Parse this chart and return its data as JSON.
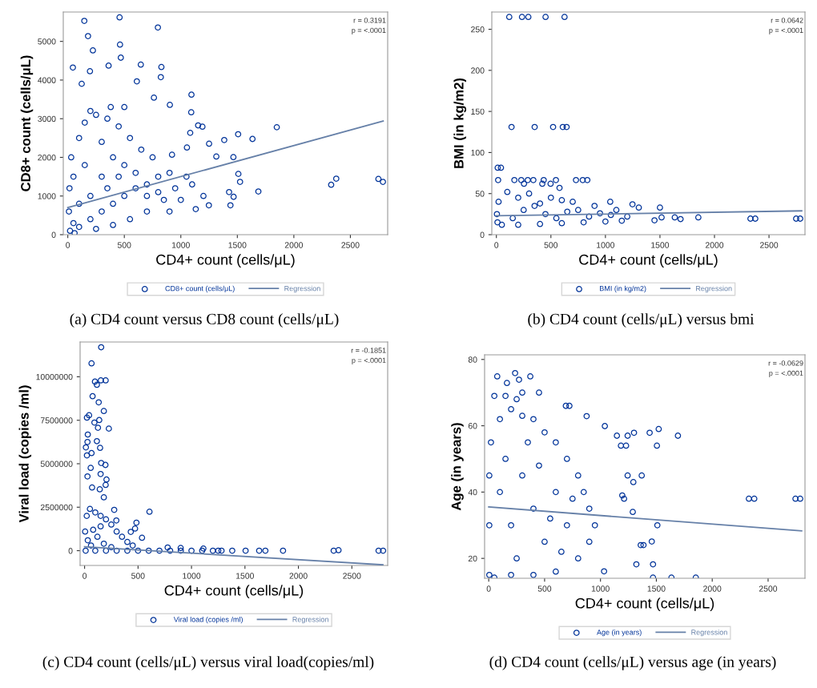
{
  "chart_data": [
    {
      "type": "scatter",
      "xlabel": "CD4+ count (cells/μL)",
      "ylabel": "CD8+ count (cells/μL)",
      "xlim": [
        -40,
        2830
      ],
      "ylim": [
        0,
        5760
      ],
      "xticks": [
        0,
        500,
        1000,
        1500,
        2000,
        2500
      ],
      "yticks": [
        0,
        1000,
        2000,
        3000,
        4000,
        5000
      ],
      "legend": "bottom",
      "annotations": [
        "r = 0.3191",
        "p = <.0001",
        "(a) CD4 count versus CD8 count (cells/μL)"
      ],
      "series": [
        {
          "name": "CD8+ count (cells/μL)",
          "type": "scatter",
          "marker": "circle",
          "color": "#003399",
          "x": [
            146,
            458,
            797,
            179,
            462,
            222,
            469,
            45,
            646,
            828,
            361,
            196,
            823,
            123,
            611,
            1094,
            1092,
            903,
            762,
            1849,
            1507,
            1634,
            1384,
            1250,
            1314,
            1465,
            1509,
            1524,
            1686,
            2330,
            2375,
            2748,
            2788,
            1439,
            1248,
            1132,
            1427,
            1467,
            1153,
            1191,
            1083,
            922,
            1054,
            20,
            50,
            100,
            200,
            300,
            400,
            500,
            600,
            700,
            800,
            900,
            950,
            850,
            700,
            550,
            400,
            250,
            100,
            50,
            30,
            100,
            150,
            250,
            350,
            450,
            550,
            650,
            750,
            400,
            300,
            200,
            500,
            600,
            350,
            150,
            450,
            700,
            800,
            1000,
            1050,
            1100,
            1200,
            900,
            10,
            15,
            60,
            300,
            200,
            380,
            500
          ],
          "values": [
            5531,
            5621,
            5359,
            5138,
            4917,
            4766,
            4579,
            4324,
            4400,
            4338,
            4372,
            4228,
            4076,
            3903,
            3966,
            3621,
            3166,
            3359,
            3545,
            2779,
            2600,
            2476,
            2448,
            2352,
            2021,
            2007,
            1572,
            1366,
            1117,
            1290,
            1448,
            1441,
            1366,
            759,
            759,
            662,
            1103,
            979,
            2828,
            2793,
            2634,
            2069,
            2255,
            100,
            300,
            200,
            400,
            600,
            800,
            1000,
            1200,
            1300,
            1500,
            1600,
            1200,
            900,
            600,
            400,
            250,
            150,
            800,
            1500,
            2000,
            2500,
            2900,
            3100,
            3000,
            2800,
            2500,
            2200,
            2000,
            2000,
            1500,
            1000,
            1800,
            1600,
            1200,
            1800,
            1500,
            1000,
            1100,
            900,
            1500,
            1300,
            1000,
            600,
            600,
            1200,
            40,
            2400,
            3200,
            3300,
            3300
          ]
        },
        {
          "name": "Regression",
          "type": "line",
          "color": "#6680a8",
          "x": [
            0,
            2790
          ],
          "values": [
            700,
            2940
          ]
        }
      ]
    },
    {
      "type": "scatter",
      "xlabel": "CD4+ count (cells/μL)",
      "ylabel": "BMI (in kg/m2)",
      "xlim": [
        -42,
        2830
      ],
      "ylim": [
        0,
        271
      ],
      "xticks": [
        0,
        500,
        1000,
        1500,
        2000,
        2500
      ],
      "yticks": [
        0,
        50,
        100,
        150,
        200,
        250
      ],
      "legend": "bottom",
      "annotations": [
        "r = 0.0642",
        "p = <.0001",
        "(b) CD4 count (cells/μL) versus bmi"
      ],
      "series": [
        {
          "name": "BMI (in kg/m2)",
          "type": "scatter",
          "marker": "circle",
          "color": "#003399",
          "x": [
            118,
            235,
            293,
            451,
            625,
            139,
            351,
            520,
            609,
            644,
            12,
            42,
            16,
            165,
            228,
            288,
            339,
            434,
            546,
            730,
            792,
            834,
            253,
            421,
            497,
            579,
            1636,
            1689,
            1852,
            2330,
            2374,
            2749,
            2786,
            1450,
            1515,
            1500,
            1248,
            1044,
            1306,
            10,
            50,
            200,
            400,
            600,
            800,
            1000,
            1150,
            1200,
            1100,
            900,
            700,
            500,
            300,
            100,
            20,
            5,
            250,
            450,
            650,
            850,
            150,
            350,
            550,
            750,
            950,
            1050,
            200,
            400,
            600
          ],
          "values": [
            265,
            265,
            265,
            265,
            265,
            131,
            131,
            131,
            131,
            131,
            81.5,
            81.5,
            66.5,
            66.5,
            66.5,
            66.5,
            66.5,
            66.5,
            66.5,
            66.5,
            66.5,
            66.5,
            62,
            62,
            62,
            57,
            21,
            19,
            21,
            19.5,
            19.5,
            19.5,
            19.5,
            17.5,
            21,
            33,
            37,
            40,
            33,
            15,
            12,
            12,
            13,
            14,
            15,
            16,
            17,
            22,
            30,
            35,
            40,
            45,
            50,
            52,
            40,
            25,
            30,
            25,
            28,
            22,
            20,
            35,
            20,
            30,
            26,
            24,
            45,
            38,
            42
          ]
        },
        {
          "name": "Regression",
          "type": "line",
          "color": "#6680a8",
          "x": [
            0,
            2800
          ],
          "values": [
            23,
            29
          ]
        }
      ]
    },
    {
      "type": "scatter",
      "xlabel": "CD4+ count (cells/μL)",
      "ylabel": "Viral load (copies /ml)",
      "xlim": [
        -42,
        2835
      ],
      "ylim": [
        -850000,
        12000000
      ],
      "xticks": [
        0,
        500,
        1000,
        1500,
        2000,
        2500
      ],
      "yticks": [
        0,
        2500000,
        5000000,
        7500000,
        10000000
      ],
      "legend": "bottom",
      "annotations": [
        "r = -0.1851",
        "p = <.0001",
        "(c) CD4 count (cells/μL) versus viral load(copies/ml)"
      ],
      "series": [
        {
          "name": "Viral load (copies /ml)",
          "type": "scatter",
          "marker": "circle",
          "color": "#003399",
          "x": [
            155,
            65,
            97,
            152,
            197,
            115,
            75,
            132,
            180,
            42,
            22,
            92,
            137,
            125,
            227,
            30,
            27,
            115,
            12,
            145,
            22,
            65,
            155,
            195,
            57,
            150,
            205,
            27,
            197,
            70,
            142,
            180,
            277,
            607,
            297,
            485,
            472,
            537,
            432,
            1633,
            1691,
            1856,
            2330,
            2375,
            2750,
            2792,
            1506,
            1381,
            1281,
            777,
            899,
            1111,
            10,
            100,
            200,
            300,
            400,
            500,
            600,
            700,
            800,
            900,
            1000,
            1100,
            1200,
            1250,
            5,
            20,
            50,
            100,
            150,
            200,
            250,
            300,
            350,
            400,
            450,
            30,
            80,
            120,
            180,
            60,
            250,
            150
          ],
          "values": [
            11700000,
            10770000,
            9720000,
            9790000,
            9790000,
            9540000,
            8880000,
            8530000,
            8030000,
            7790000,
            7650000,
            7370000,
            7510000,
            7070000,
            7020000,
            6680000,
            6250000,
            6300000,
            5940000,
            5910000,
            5480000,
            5610000,
            5040000,
            4930000,
            4760000,
            4410000,
            4090000,
            4270000,
            3780000,
            3630000,
            3530000,
            3070000,
            2350000,
            2240000,
            1740000,
            1610000,
            1270000,
            740000,
            1080000,
            0,
            0,
            0,
            0,
            30000,
            0,
            0,
            0,
            0,
            0,
            184000,
            154000,
            123000,
            0,
            0,
            0,
            0,
            0,
            0,
            0,
            0,
            0,
            0,
            0,
            0,
            0,
            0,
            1100000,
            2000000,
            2400000,
            2200000,
            2000000,
            1800000,
            1500000,
            1100000,
            800000,
            500000,
            300000,
            600000,
            1200000,
            800000,
            400000,
            300000,
            200000,
            1400000
          ]
        },
        {
          "name": "Regression",
          "type": "line",
          "color": "#6680a8",
          "x": [
            0,
            2790
          ],
          "values": [
            230000,
            -814000
          ]
        }
      ]
    },
    {
      "type": "scatter",
      "xlabel": "CD4+ count (cells/μL)",
      "ylabel": "Age (in years)",
      "xlim": [
        -37,
        2830
      ],
      "ylim": [
        14,
        81.4
      ],
      "xticks": [
        0,
        500,
        1000,
        1500,
        2000,
        2500
      ],
      "yticks": [
        20,
        40,
        60,
        80
      ],
      "legend": "bottom",
      "annotations": [
        "r = -0.0629",
        "p = <.0001",
        "(d) CD4 count (cells/μL) versus age (in years)"
      ],
      "series": [
        {
          "name": "Age (in years)",
          "type": "scatter",
          "marker": "circle",
          "color": "#003399",
          "x": [
            76,
            236,
            372,
            271,
            163,
            690,
            722,
            876,
            1039,
            1147,
            1243,
            1300,
            1440,
            1521,
            1693,
            1505,
            1183,
            1229,
            1243,
            1369,
            1294,
            1195,
            1211,
            2328,
            2376,
            2745,
            2787,
            1289,
            1509,
            1459,
            1360,
            1385,
            1321,
            1470,
            1032,
            1635,
            1853,
            1470,
            5,
            50,
            200,
            400,
            600,
            800,
            900,
            950,
            900,
            850,
            800,
            700,
            600,
            500,
            400,
            300,
            200,
            100,
            20,
            5,
            5,
            100,
            200,
            300,
            400,
            500,
            600,
            700,
            250,
            150,
            350,
            450,
            550,
            650,
            750,
            50,
            150,
            300,
            450,
            250
          ],
          "values": [
            74.9,
            75.9,
            74.9,
            73.9,
            72.9,
            66,
            66,
            62.9,
            59.9,
            57,
            57,
            57.9,
            57.9,
            59,
            57,
            54,
            54,
            54,
            45,
            45,
            43,
            39,
            38,
            38,
            38,
            38,
            38,
            34,
            30,
            25.1,
            24,
            24,
            18.2,
            18.2,
            16.1,
            14.2,
            14.2,
            14.2,
            15,
            14.2,
            15,
            15,
            16,
            20,
            25,
            30,
            35,
            40,
            45,
            50,
            55,
            58,
            62,
            63,
            65,
            62,
            55,
            45,
            30,
            40,
            30,
            45,
            35,
            25,
            40,
            30,
            20,
            50,
            55,
            48,
            32,
            22,
            38,
            69,
            69,
            70,
            70,
            68
          ]
        },
        {
          "name": "Regression",
          "type": "line",
          "color": "#6680a8",
          "x": [
            0,
            2800
          ],
          "values": [
            35.5,
            28.3
          ]
        }
      ]
    }
  ]
}
